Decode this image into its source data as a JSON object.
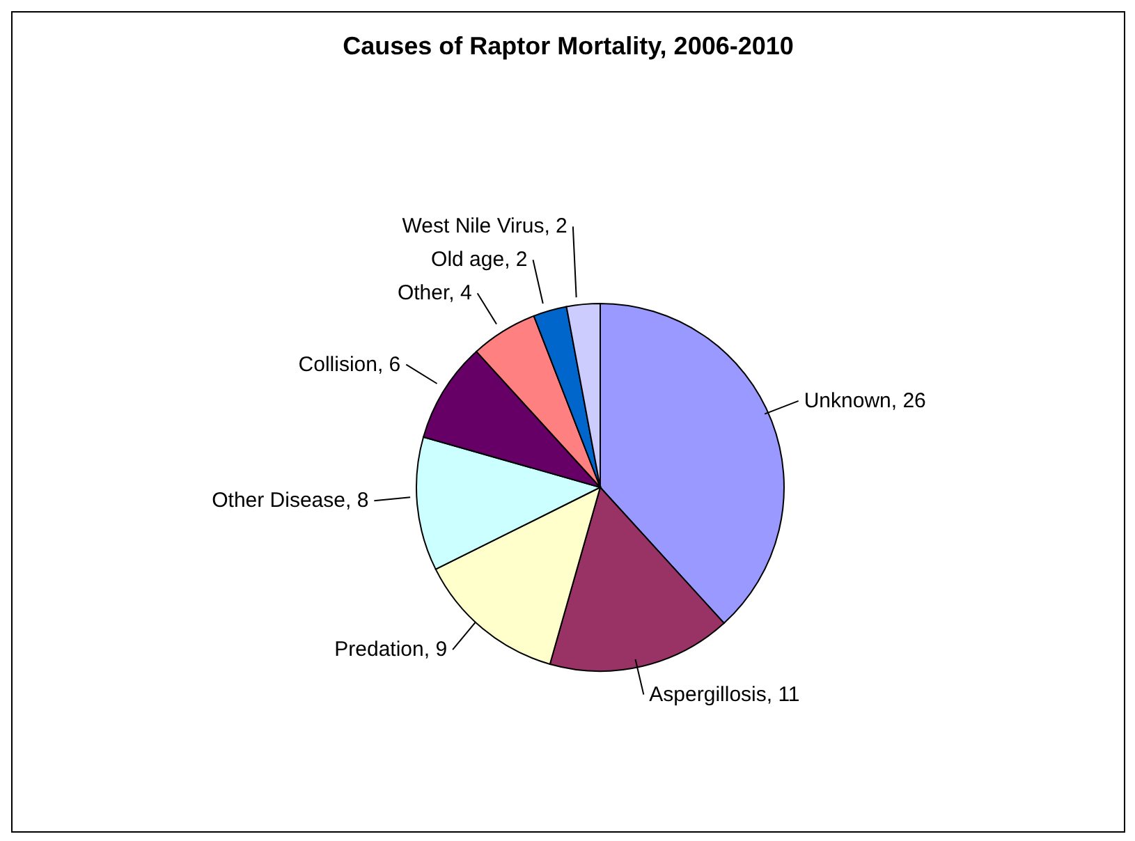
{
  "chart_data": {
    "type": "pie",
    "title": "Causes of Raptor Mortality, 2006-2010",
    "categories": [
      "Unknown",
      "Aspergillosis",
      "Predation",
      "Other Disease",
      "Collision",
      "Other",
      "Old age",
      "West Nile Virus"
    ],
    "values": [
      26,
      11,
      9,
      8,
      6,
      4,
      2,
      2
    ],
    "value_labels": [
      ", 26",
      ", 11",
      ", 9",
      ", 8",
      ", 6",
      ", 4",
      ", 2",
      ", 2"
    ],
    "colors": [
      "#9999ff",
      "#993366",
      "#ffffcc",
      "#ccffff",
      "#660066",
      "#ff8080",
      "#0066cc",
      "#ccccff"
    ]
  }
}
